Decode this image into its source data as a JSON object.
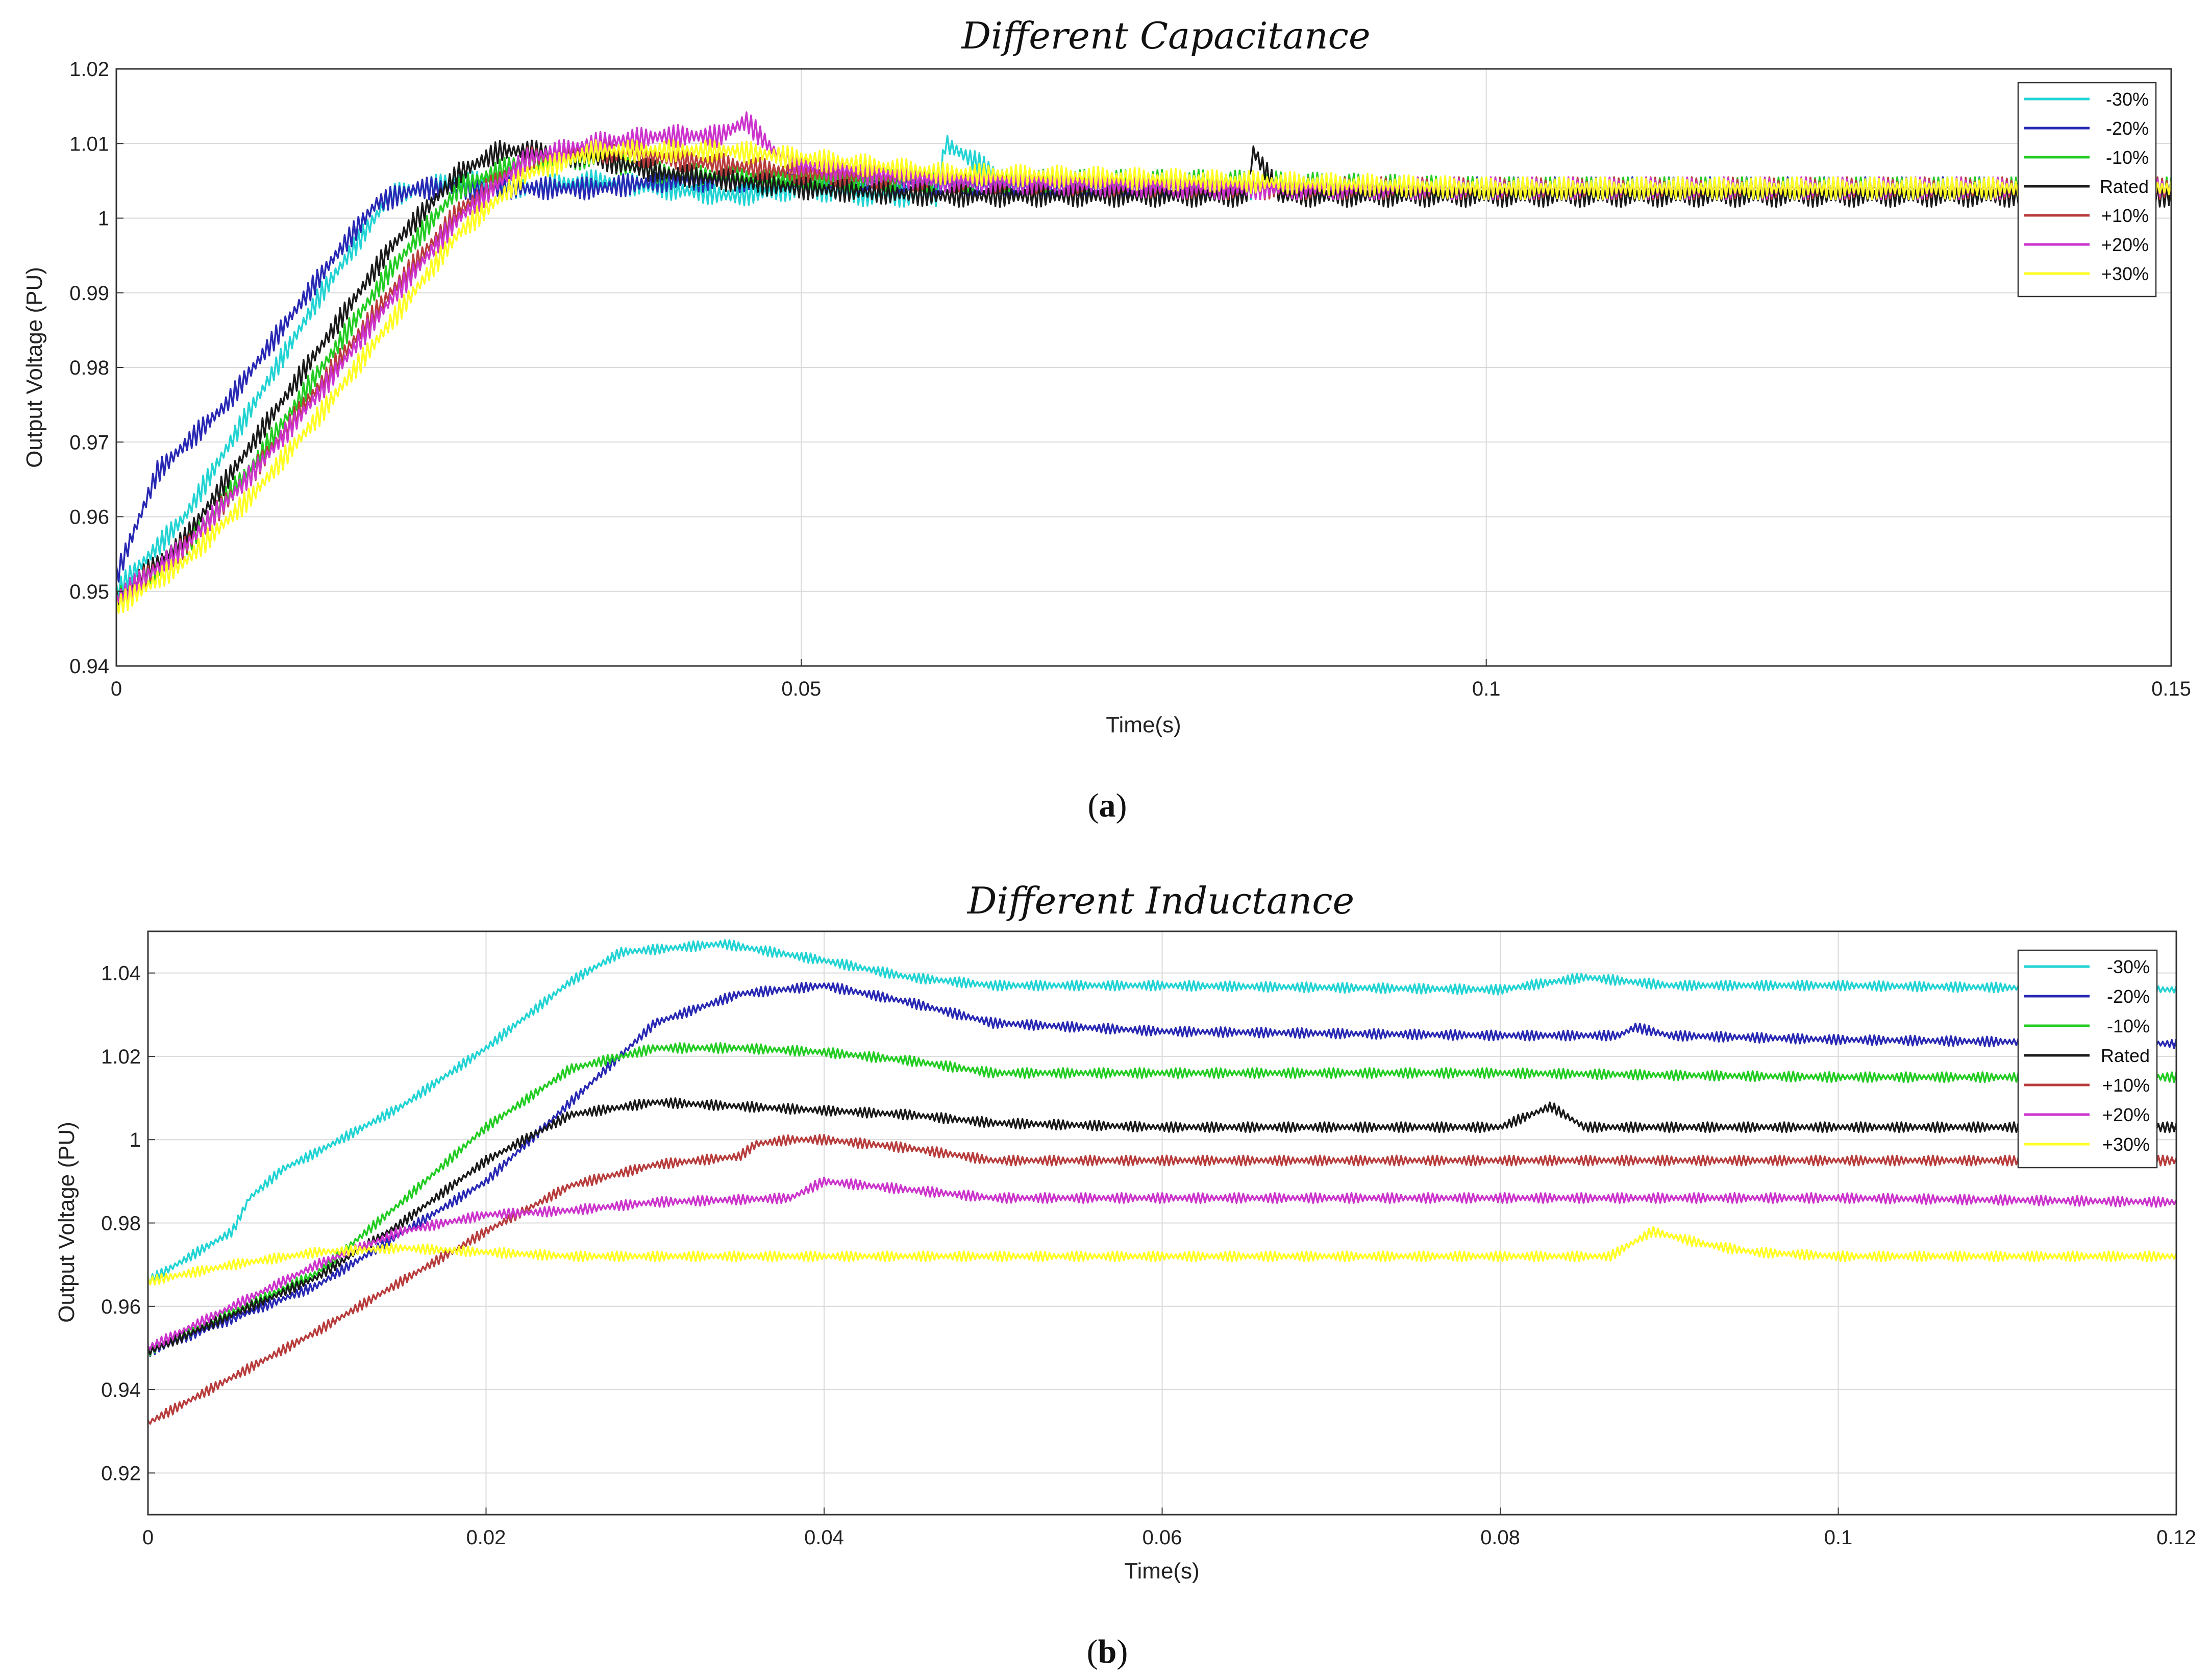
{
  "figure": {
    "caption_a": "a",
    "caption_b": "b"
  },
  "chart_data": [
    {
      "type": "line",
      "title": "Different Capacitance",
      "xlabel": "Time(s)",
      "ylabel": "Output Voltage (PU)",
      "xlim": [
        0,
        0.15
      ],
      "ylim": [
        0.94,
        1.02
      ],
      "xticks": [
        0,
        0.05,
        0.1,
        0.15
      ],
      "xtick_labels": [
        "0",
        "0.05",
        "0.1",
        "0.15"
      ],
      "yticks": [
        0.94,
        0.95,
        0.96,
        0.97,
        0.98,
        0.99,
        1.0,
        1.01,
        1.02
      ],
      "ytick_labels": [
        "0.94",
        "0.95",
        "0.96",
        "0.97",
        "0.98",
        "0.99",
        "1",
        "1.01",
        "1.02"
      ],
      "grid": true,
      "legend_position": "top-right",
      "ripple_amplitude": 0.0015,
      "series": [
        {
          "name": "-30%",
          "color": "#22d3d3",
          "x": [
            0,
            0.005,
            0.01,
            0.015,
            0.02,
            0.025,
            0.03,
            0.035,
            0.04,
            0.045,
            0.05,
            0.055,
            0.06,
            0.0605,
            0.065,
            0.07,
            0.08,
            0.1,
            0.12,
            0.15
          ],
          "y": [
            0.95,
            0.96,
            0.975,
            0.99,
            1.003,
            1.005,
            1.004,
            1.005,
            1.004,
            1.003,
            1.004,
            1.003,
            1.003,
            1.01,
            1.005,
            1.004,
            1.004,
            1.004,
            1.004,
            1.004
          ]
        },
        {
          "name": "-20%",
          "color": "#2828b4",
          "x": [
            0,
            0.003,
            0.008,
            0.012,
            0.016,
            0.019,
            0.022,
            0.025,
            0.03,
            0.035,
            0.04,
            0.05,
            0.07,
            0.1,
            0.12,
            0.15
          ],
          "y": [
            0.952,
            0.966,
            0.975,
            0.985,
            0.995,
            1.002,
            1.004,
            1.004,
            1.004,
            1.004,
            1.005,
            1.005,
            1.004,
            1.004,
            1.004,
            1.004
          ]
        },
        {
          "name": "-10%",
          "color": "#22cc22",
          "x": [
            0,
            0.005,
            0.01,
            0.015,
            0.02,
            0.025,
            0.03,
            0.035,
            0.04,
            0.05,
            0.06,
            0.07,
            0.08,
            0.1,
            0.12,
            0.15
          ],
          "y": [
            0.949,
            0.956,
            0.967,
            0.98,
            0.993,
            1.004,
            1.008,
            1.008,
            1.006,
            1.005,
            1.005,
            1.005,
            1.005,
            1.004,
            1.004,
            1.004
          ]
        },
        {
          "name": "Rated",
          "color": "#1a1a1a",
          "x": [
            0,
            0.005,
            0.01,
            0.015,
            0.02,
            0.025,
            0.028,
            0.03,
            0.035,
            0.04,
            0.05,
            0.06,
            0.07,
            0.0825,
            0.083,
            0.085,
            0.1,
            0.12,
            0.15
          ],
          "y": [
            0.949,
            0.957,
            0.97,
            0.983,
            0.996,
            1.006,
            1.009,
            1.009,
            1.008,
            1.006,
            1.004,
            1.003,
            1.003,
            1.003,
            1.009,
            1.003,
            1.003,
            1.003,
            1.003
          ]
        },
        {
          "name": "+10%",
          "color": "#b83c3c",
          "x": [
            0,
            0.005,
            0.01,
            0.015,
            0.02,
            0.025,
            0.03,
            0.035,
            0.04,
            0.05,
            0.06,
            0.08,
            0.1,
            0.12,
            0.15
          ],
          "y": [
            0.949,
            0.956,
            0.966,
            0.978,
            0.99,
            1.001,
            1.008,
            1.009,
            1.008,
            1.006,
            1.005,
            1.004,
            1.004,
            1.004,
            1.004
          ]
        },
        {
          "name": "+20%",
          "color": "#cc33cc",
          "x": [
            0,
            0.005,
            0.01,
            0.015,
            0.02,
            0.025,
            0.03,
            0.035,
            0.04,
            0.044,
            0.046,
            0.048,
            0.05,
            0.06,
            0.08,
            0.1,
            0.12,
            0.15
          ],
          "y": [
            0.949,
            0.956,
            0.966,
            0.977,
            0.989,
            1.0,
            1.008,
            1.01,
            1.011,
            1.011,
            1.013,
            1.009,
            1.007,
            1.005,
            1.004,
            1.004,
            1.004,
            1.004
          ]
        },
        {
          "name": "+30%",
          "color": "#ffff22",
          "x": [
            0,
            0.005,
            0.01,
            0.015,
            0.02,
            0.025,
            0.03,
            0.035,
            0.04,
            0.045,
            0.05,
            0.06,
            0.08,
            0.1,
            0.12,
            0.15
          ],
          "y": [
            0.948,
            0.954,
            0.963,
            0.974,
            0.986,
            0.998,
            1.006,
            1.009,
            1.009,
            1.009,
            1.008,
            1.006,
            1.005,
            1.004,
            1.004,
            1.004
          ]
        }
      ]
    },
    {
      "type": "line",
      "title": "Different Inductance",
      "xlabel": "Time(s)",
      "ylabel": "Output Voltage (PU)",
      "xlim": [
        0,
        0.12
      ],
      "ylim": [
        0.91,
        1.05
      ],
      "xticks": [
        0,
        0.02,
        0.04,
        0.06,
        0.08,
        0.1,
        0.12
      ],
      "xtick_labels": [
        "0",
        "0.02",
        "0.04",
        "0.06",
        "0.08",
        "0.1",
        "0.12"
      ],
      "yticks": [
        0.92,
        0.94,
        0.96,
        0.98,
        1.0,
        1.02,
        1.04
      ],
      "ytick_labels": [
        "0.92",
        "0.94",
        "0.96",
        "0.98",
        "1",
        "1.02",
        "1.04"
      ],
      "grid": true,
      "legend_position": "top-right",
      "ripple_amplitude": 0.0012,
      "series": [
        {
          "name": "-30%",
          "color": "#22d3d3",
          "x": [
            0,
            0.005,
            0.006,
            0.008,
            0.01,
            0.015,
            0.02,
            0.025,
            0.028,
            0.034,
            0.04,
            0.045,
            0.05,
            0.06,
            0.08,
            0.085,
            0.09,
            0.1,
            0.12
          ],
          "y": [
            0.966,
            0.978,
            0.986,
            0.993,
            0.997,
            1.008,
            1.022,
            1.038,
            1.045,
            1.047,
            1.043,
            1.039,
            1.037,
            1.037,
            1.036,
            1.039,
            1.037,
            1.037,
            1.036
          ]
        },
        {
          "name": "-20%",
          "color": "#2828b4",
          "x": [
            0,
            0.01,
            0.02,
            0.025,
            0.03,
            0.035,
            0.04,
            0.045,
            0.05,
            0.06,
            0.08,
            0.087,
            0.088,
            0.09,
            0.1,
            0.12
          ],
          "y": [
            0.949,
            0.965,
            0.99,
            1.009,
            1.028,
            1.035,
            1.037,
            1.033,
            1.028,
            1.026,
            1.025,
            1.025,
            1.027,
            1.025,
            1.024,
            1.023
          ]
        },
        {
          "name": "-10%",
          "color": "#22cc22",
          "x": [
            0,
            0.01,
            0.015,
            0.02,
            0.025,
            0.03,
            0.035,
            0.04,
            0.045,
            0.05,
            0.06,
            0.08,
            0.1,
            0.12
          ],
          "y": [
            0.949,
            0.968,
            0.985,
            1.003,
            1.017,
            1.022,
            1.022,
            1.021,
            1.019,
            1.016,
            1.016,
            1.016,
            1.015,
            1.015
          ]
        },
        {
          "name": "Rated",
          "color": "#1a1a1a",
          "x": [
            0,
            0.01,
            0.015,
            0.02,
            0.025,
            0.03,
            0.035,
            0.04,
            0.045,
            0.05,
            0.06,
            0.08,
            0.083,
            0.085,
            0.09,
            0.1,
            0.12
          ],
          "y": [
            0.949,
            0.967,
            0.98,
            0.995,
            1.006,
            1.009,
            1.008,
            1.007,
            1.006,
            1.004,
            1.003,
            1.003,
            1.008,
            1.003,
            1.003,
            1.003,
            1.003
          ]
        },
        {
          "name": "+10%",
          "color": "#b83c3c",
          "x": [
            0,
            0.005,
            0.01,
            0.015,
            0.02,
            0.025,
            0.03,
            0.035,
            0.036,
            0.038,
            0.04,
            0.045,
            0.05,
            0.06,
            0.08,
            0.1,
            0.12
          ],
          "y": [
            0.932,
            0.943,
            0.954,
            0.966,
            0.978,
            0.989,
            0.994,
            0.996,
            0.999,
            1.0,
            1.0,
            0.998,
            0.995,
            0.995,
            0.995,
            0.995,
            0.995
          ]
        },
        {
          "name": "+20%",
          "color": "#cc33cc",
          "x": [
            0,
            0.005,
            0.01,
            0.015,
            0.02,
            0.025,
            0.03,
            0.038,
            0.04,
            0.045,
            0.05,
            0.06,
            0.08,
            0.1,
            0.12
          ],
          "y": [
            0.95,
            0.96,
            0.97,
            0.978,
            0.982,
            0.983,
            0.985,
            0.986,
            0.99,
            0.988,
            0.986,
            0.986,
            0.986,
            0.986,
            0.985
          ]
        },
        {
          "name": "+30%",
          "color": "#ffff22",
          "x": [
            0,
            0.005,
            0.01,
            0.015,
            0.02,
            0.025,
            0.03,
            0.05,
            0.07,
            0.0865,
            0.089,
            0.092,
            0.095,
            0.1,
            0.12
          ],
          "y": [
            0.966,
            0.97,
            0.973,
            0.974,
            0.973,
            0.972,
            0.972,
            0.972,
            0.972,
            0.972,
            0.978,
            0.975,
            0.973,
            0.972,
            0.972
          ]
        }
      ]
    }
  ]
}
